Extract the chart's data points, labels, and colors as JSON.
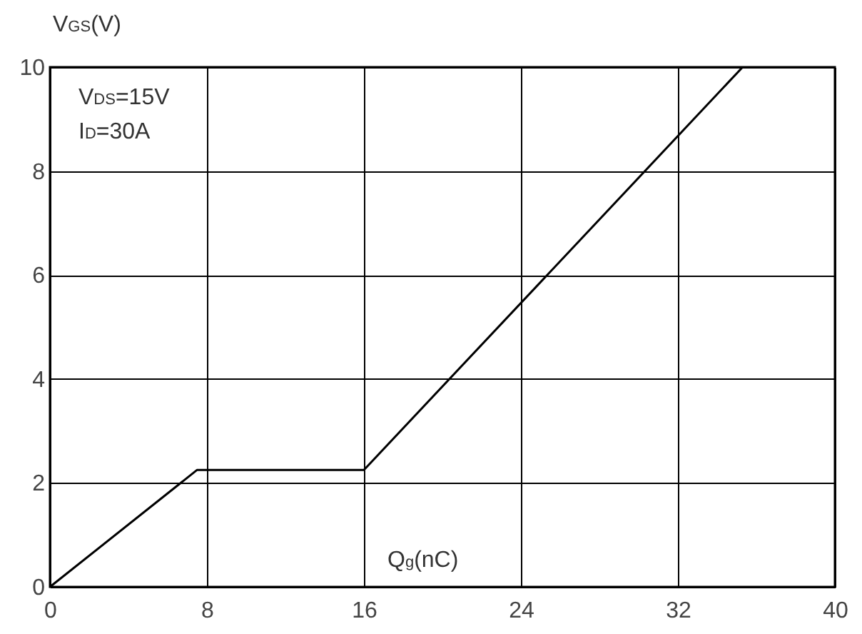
{
  "chart_data": {
    "type": "line",
    "xlabel": "Q$_{g}$(nC)",
    "ylabel": "V$_{GS}$(V)",
    "annotations": [
      "V$_{DS}$=15V",
      "I$_{D}$=30A"
    ],
    "x": [
      0,
      7.5,
      16,
      35.3
    ],
    "series": [
      {
        "color": "#000000",
        "values": [
          0,
          2.25,
          2.25,
          10
        ]
      }
    ],
    "xlim": [
      0,
      40
    ],
    "xticks": [
      0,
      8,
      16,
      24,
      32,
      40
    ],
    "ylim": [
      0,
      10
    ],
    "yticks": [
      0,
      2,
      4,
      6,
      8,
      10
    ],
    "grid": true,
    "marker": "none",
    "line_style": "solid"
  }
}
